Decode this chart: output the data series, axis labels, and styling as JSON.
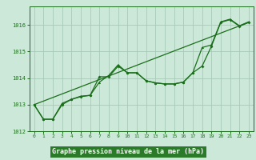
{
  "title": "Graphe pression niveau de la mer (hPa)",
  "background_color": "#cce8d8",
  "grid_color": "#a8c8b8",
  "line_color": "#1a6e1a",
  "label_bg": "#2a7a2a",
  "label_fg": "#ffffff",
  "xlim": [
    -0.5,
    23.5
  ],
  "ylim": [
    1012.0,
    1016.7
  ],
  "yticks": [
    1012,
    1013,
    1014,
    1015,
    1016
  ],
  "xticks": [
    0,
    1,
    2,
    3,
    4,
    5,
    6,
    7,
    8,
    9,
    10,
    11,
    12,
    13,
    14,
    15,
    16,
    17,
    18,
    19,
    20,
    21,
    22,
    23
  ],
  "series1": [
    1013.0,
    1012.45,
    1012.45,
    1013.0,
    1013.2,
    1013.3,
    1013.35,
    1014.05,
    1014.05,
    1014.45,
    1014.2,
    1014.2,
    1013.9,
    1013.82,
    1013.78,
    1013.78,
    1013.85,
    1014.2,
    1014.45,
    1015.2,
    1016.1,
    1016.2,
    1015.95,
    1016.1
  ],
  "series2": [
    1013.0,
    1012.45,
    1012.45,
    1013.05,
    1013.2,
    1013.32,
    1013.35,
    1013.85,
    1014.1,
    1014.5,
    1014.2,
    1014.2,
    1013.9,
    1013.82,
    1013.78,
    1013.78,
    1013.85,
    1014.2,
    1015.15,
    1015.25,
    1016.12,
    1016.22,
    1015.97,
    1016.12
  ],
  "series3_x": [
    0,
    23
  ],
  "series3_y": [
    1013.0,
    1016.1
  ]
}
